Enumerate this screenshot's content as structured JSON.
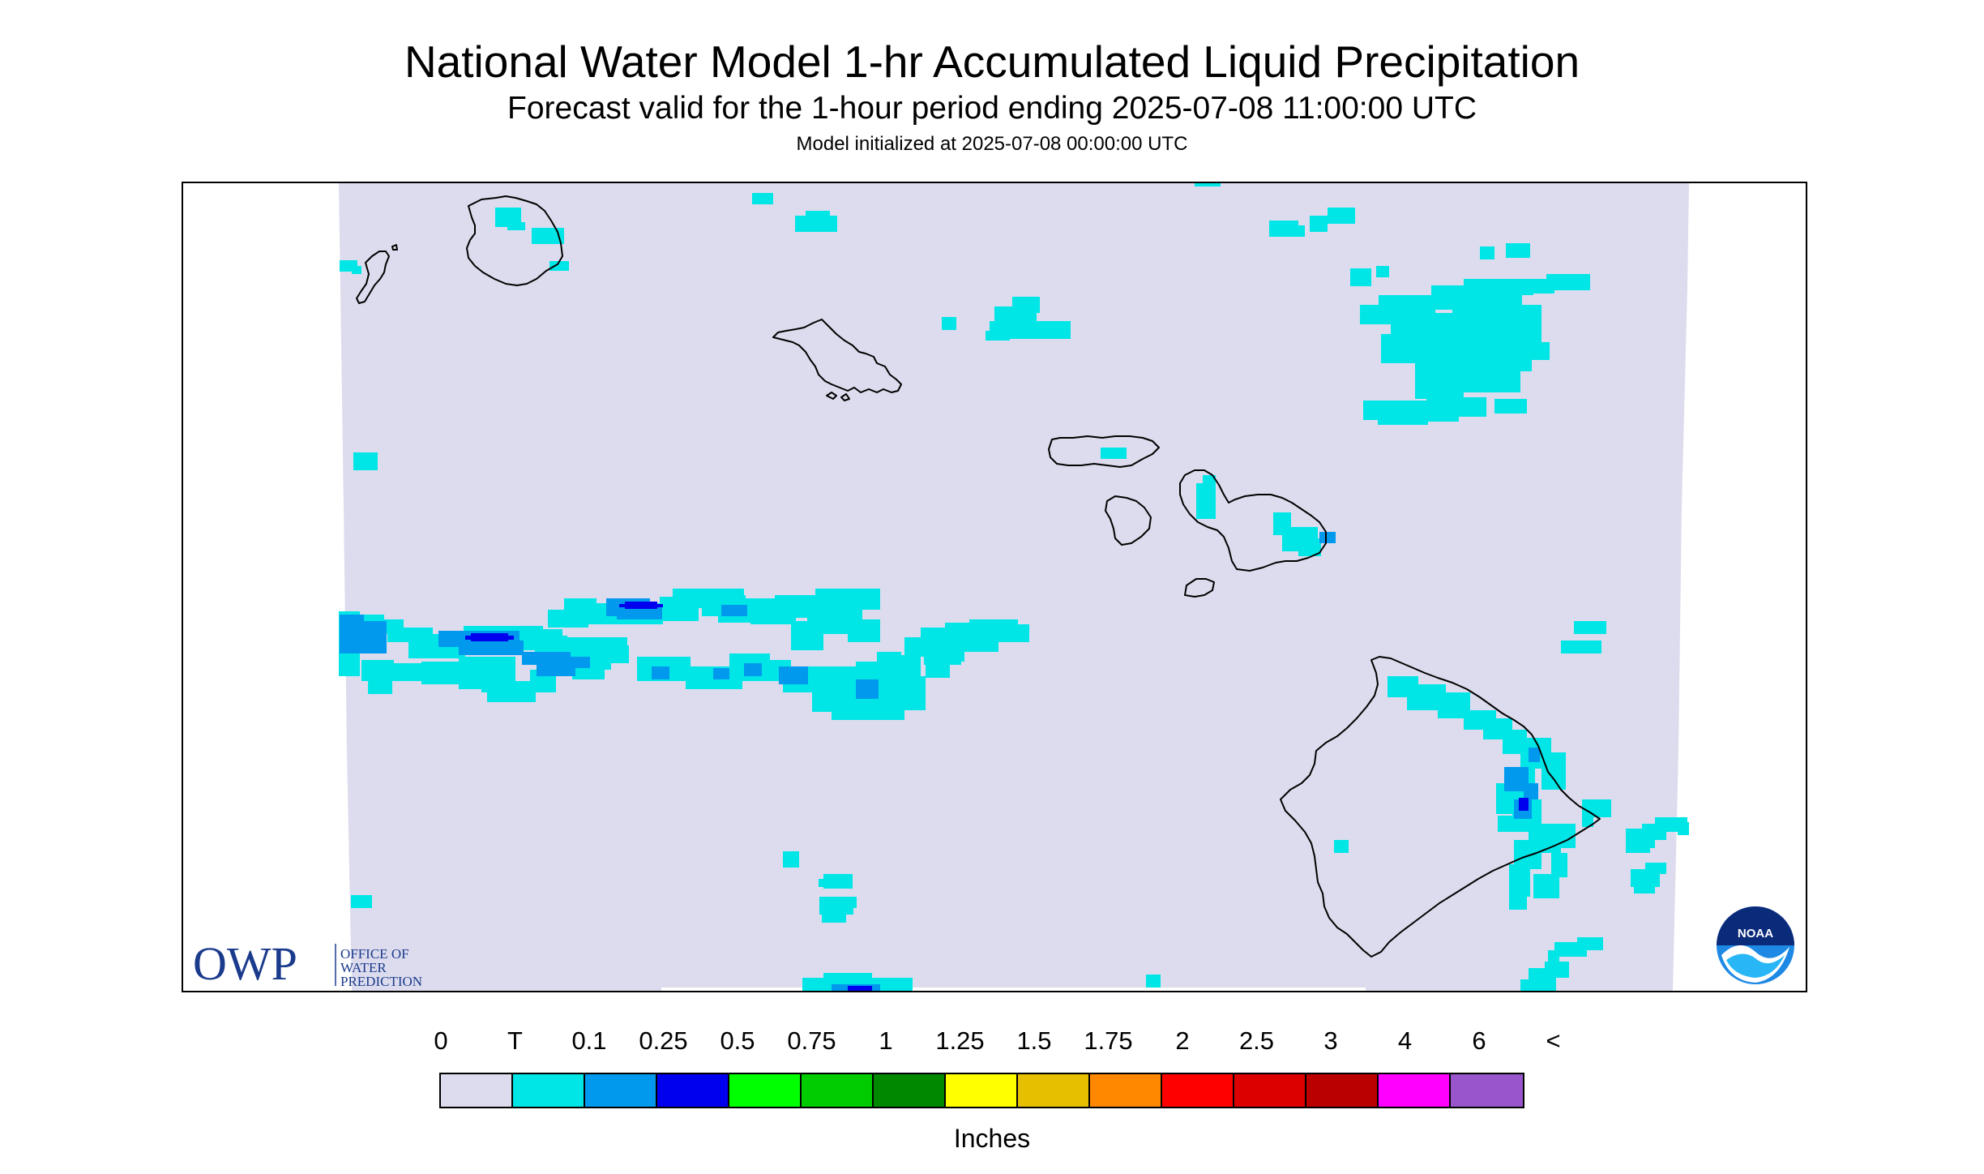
{
  "header": {
    "title": "National Water Model 1-hr Accumulated Liquid Precipitation",
    "subtitle": "Forecast valid for the 1-hour period ending 2025-07-08 11:00:00 UTC",
    "init_line": "Model initialized at 2025-07-08 00:00:00 UTC"
  },
  "logos": {
    "owp_mark": "OWP",
    "owp_text": [
      "OFFICE OF",
      "WATER",
      "PREDICTION"
    ],
    "noaa_mark": "NOAA"
  },
  "legend": {
    "labels": [
      "0",
      "T",
      "0.1",
      "0.25",
      "0.5",
      "0.75",
      "1",
      "1.25",
      "1.5",
      "1.75",
      "2",
      "2.5",
      "3",
      "4",
      "6",
      "<"
    ],
    "colors": [
      "#dcdcee",
      "#00e6e6",
      "#0099ee",
      "#0000ee",
      "#00ff00",
      "#00cc00",
      "#008800",
      "#ffff00",
      "#e6c000",
      "#ff8800",
      "#ff0000",
      "#dd0000",
      "#bb0000",
      "#ff00ff",
      "#9955cc"
    ],
    "units": "Inches"
  },
  "map": {
    "background_color": "#dcdcee",
    "trace_color": "#00e6e6",
    "light_color": "#0099ee",
    "moderate_color": "#0000ee"
  }
}
